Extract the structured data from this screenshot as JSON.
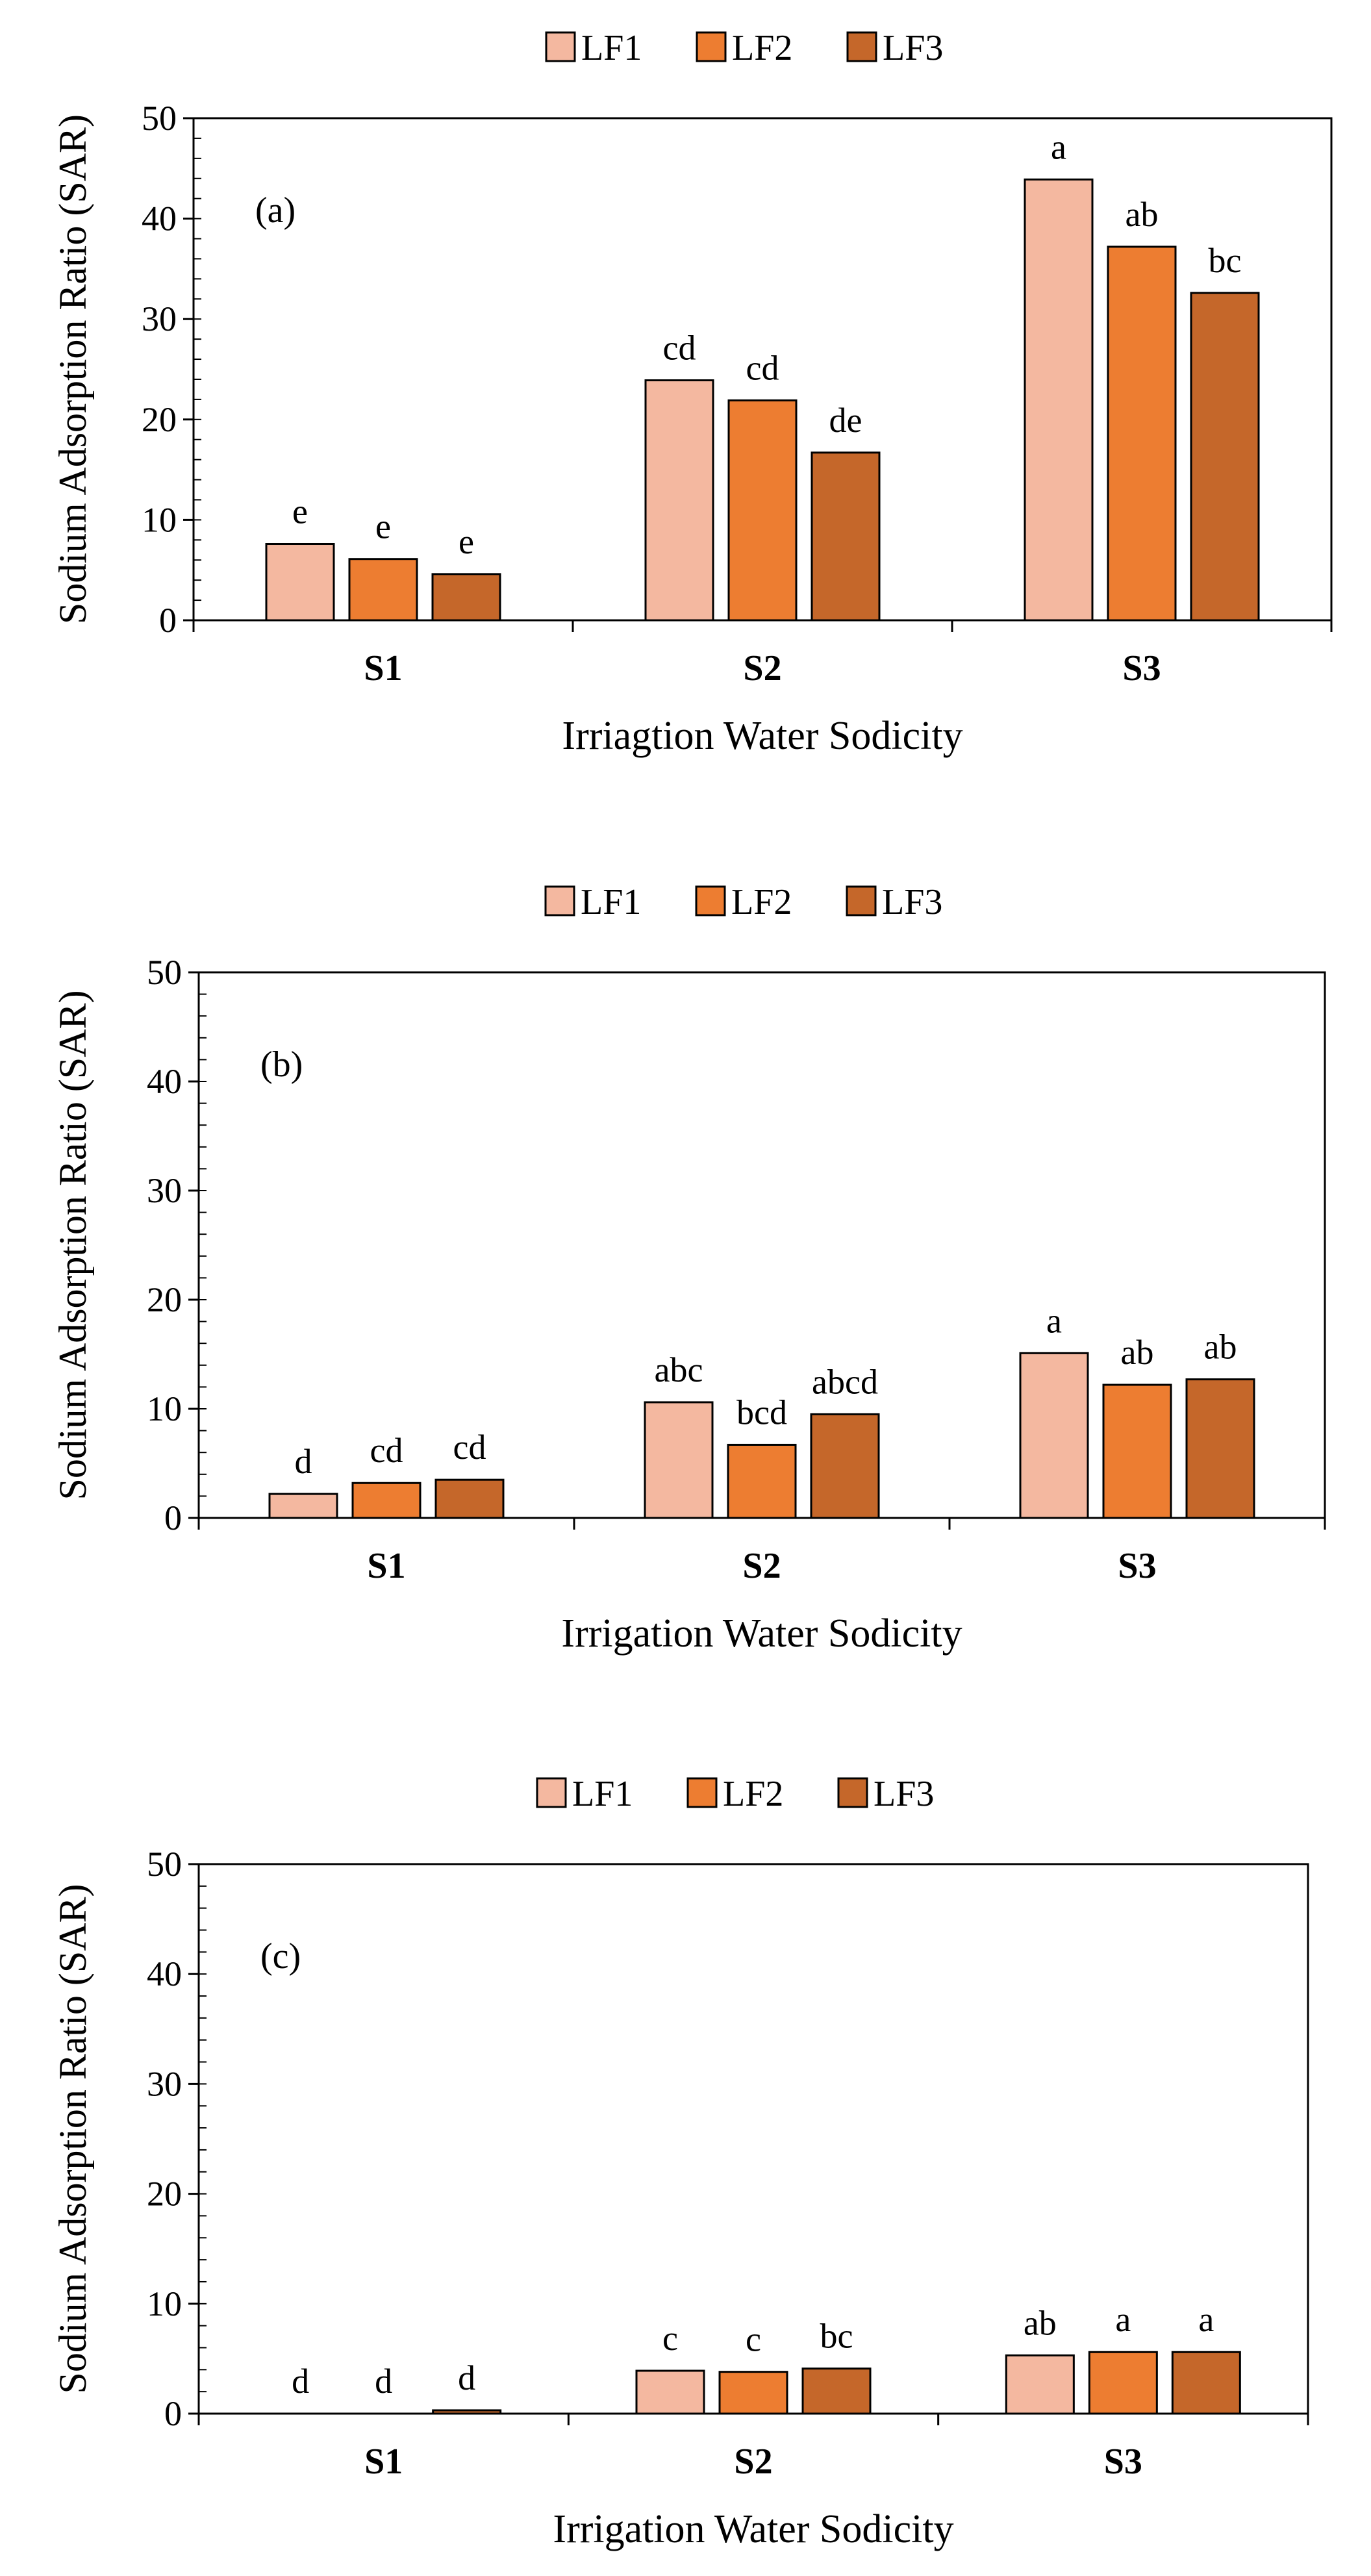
{
  "colors": {
    "LF1": "#F4B8A0",
    "LF2": "#ED7D31",
    "LF3": "#C5672A",
    "stroke": "#000000"
  },
  "chart_data": [
    {
      "type": "bar",
      "panel_label": "(a)",
      "legend": [
        "LF1",
        "LF2",
        "LF3"
      ],
      "categories": [
        "S1",
        "S2",
        "S3"
      ],
      "series": [
        {
          "name": "LF1",
          "values": [
            7.6,
            23.9,
            43.9
          ]
        },
        {
          "name": "LF2",
          "values": [
            6.1,
            21.9,
            37.2
          ]
        },
        {
          "name": "LF3",
          "values": [
            4.6,
            16.7,
            32.6
          ]
        }
      ],
      "letters": [
        [
          "e",
          "e",
          "e"
        ],
        [
          "cd",
          "cd",
          "de"
        ],
        [
          "a",
          "ab",
          "bc"
        ]
      ],
      "ylabel": "Sodium Adsorption Ratio (SAR)",
      "xlabel": "Irriagtion Water Sodicity",
      "ylim": [
        0,
        50
      ],
      "yticks": [
        0,
        10,
        20,
        30,
        40,
        50
      ],
      "tick_labels": [
        "0",
        "10",
        "20",
        "30",
        "40",
        "50"
      ]
    },
    {
      "type": "bar",
      "panel_label": "(b)",
      "legend": [
        "LF1",
        "LF2",
        "LF3"
      ],
      "categories": [
        "S1",
        "S2",
        "S3"
      ],
      "series": [
        {
          "name": "LF1",
          "values": [
            2.2,
            10.6,
            15.1
          ]
        },
        {
          "name": "LF2",
          "values": [
            3.2,
            6.7,
            12.2
          ]
        },
        {
          "name": "LF3",
          "values": [
            3.5,
            9.5,
            12.7
          ]
        }
      ],
      "letters": [
        [
          "d",
          "cd",
          "cd"
        ],
        [
          "abc",
          "bcd",
          "abcd"
        ],
        [
          "a",
          "ab",
          "ab"
        ]
      ],
      "ylabel": "Sodium Adsorption Ratio (SAR)",
      "xlabel": "Irrigation Water Sodicity",
      "ylim": [
        0,
        50
      ],
      "yticks": [
        0,
        10,
        20,
        30,
        40,
        50
      ],
      "tick_labels": [
        "0",
        "10",
        "20",
        "30",
        "40",
        "50"
      ]
    },
    {
      "type": "bar",
      "panel_label": "(c)",
      "legend": [
        "LF1",
        "LF2",
        "LF3"
      ],
      "categories": [
        "S1",
        "S2",
        "S3"
      ],
      "series": [
        {
          "name": "LF1",
          "values": [
            0.0,
            3.9,
            5.3
          ]
        },
        {
          "name": "LF2",
          "values": [
            0.0,
            3.8,
            5.6
          ]
        },
        {
          "name": "LF3",
          "values": [
            0.3,
            4.1,
            5.6
          ]
        }
      ],
      "letters": [
        [
          "d",
          "d",
          "d"
        ],
        [
          "c",
          "c",
          "bc"
        ],
        [
          "ab",
          "a",
          "a"
        ]
      ],
      "ylabel": "Sodium Adsorption Ratio (SAR)",
      "xlabel": "Irrigation Water Sodicity",
      "ylim": [
        0,
        50
      ],
      "yticks": [
        0,
        10,
        20,
        30,
        40,
        50
      ],
      "tick_labels": [
        "0",
        "10",
        "20",
        "30",
        "40",
        "50"
      ]
    }
  ]
}
